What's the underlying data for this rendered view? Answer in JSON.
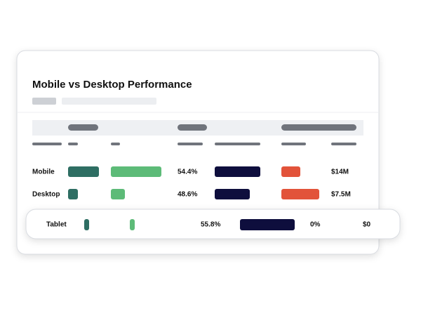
{
  "header": {
    "title": "Mobile vs Desktop Performance"
  },
  "table": {
    "rows": [
      {
        "label": "Mobile",
        "share": "54.4%",
        "revenue": "$14M"
      },
      {
        "label": "Desktop",
        "share": "48.6%",
        "revenue": "$7.5M"
      },
      {
        "label": "Tablet",
        "share": "55.8%",
        "change": "0%",
        "revenue": "$0"
      }
    ]
  }
}
